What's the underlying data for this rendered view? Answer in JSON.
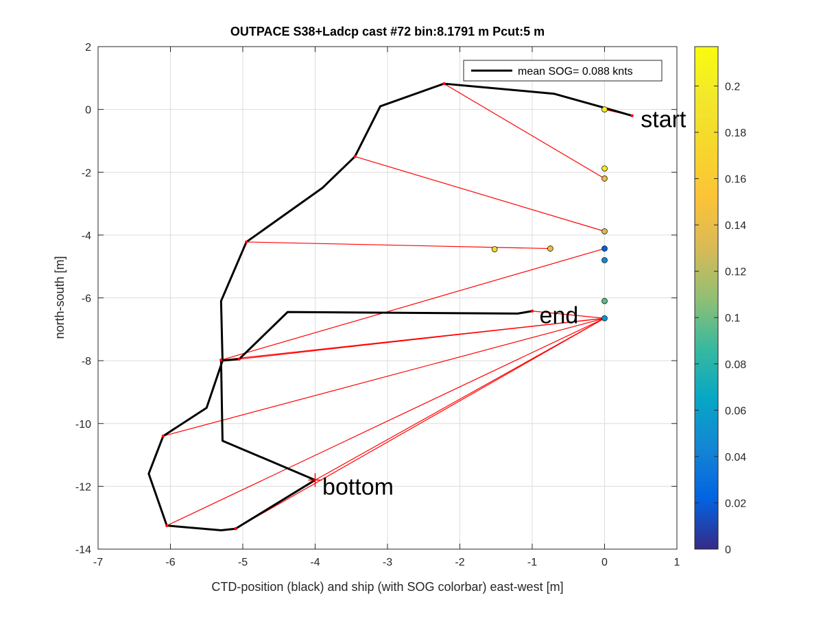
{
  "chart_data": {
    "type": "line",
    "title": "OUTPACE S38+Ladcp cast #72 bin:8.1791 m  Pcut:5 m",
    "xlabel": "CTD-position (black) and ship (with SOG colorbar) east-west [m]",
    "ylabel": "north-south [m]",
    "xlim": [
      -7,
      1
    ],
    "ylim": [
      -14,
      2
    ],
    "xticks": [
      -7,
      -6,
      -5,
      -4,
      -3,
      -2,
      -1,
      0,
      1
    ],
    "yticks": [
      -14,
      -12,
      -10,
      -8,
      -6,
      -4,
      -2,
      0,
      2
    ],
    "grid": true,
    "legend": {
      "location": "top-right",
      "entries": [
        "mean SOG=  0.088 knts"
      ]
    },
    "colorbar": {
      "colormap": "parula",
      "range": [
        0,
        0.217
      ],
      "ticks": [
        0,
        0.02,
        0.04,
        0.06,
        0.08,
        0.1,
        0.12,
        0.14,
        0.16,
        0.18,
        0.2
      ]
    },
    "ctd_track": {
      "x": [
        0.38,
        0.0,
        -0.7,
        -2.22,
        -3.1,
        -3.45,
        -3.9,
        -4.95,
        -5.3,
        -5.28,
        -5.5,
        -6.1,
        -6.3,
        -6.05,
        -5.3,
        -5.1,
        -4.0,
        -5.28,
        -5.3,
        -5.05,
        -4.38,
        -1.2,
        -1.0
      ],
      "y": [
        -0.2,
        0.05,
        0.5,
        0.82,
        0.1,
        -1.5,
        -2.5,
        -4.22,
        -6.1,
        -8.0,
        -9.5,
        -10.4,
        -11.6,
        -13.25,
        -13.4,
        -13.35,
        -11.8,
        -10.55,
        -8.0,
        -7.95,
        -6.45,
        -6.5,
        -6.42
      ]
    },
    "ctd_markers": {
      "x": [
        0.38,
        -2.22,
        -3.45,
        -4.95,
        -5.3,
        -5.05,
        -6.1,
        -6.05,
        -5.1,
        -1.0
      ],
      "y": [
        -0.2,
        0.82,
        -1.5,
        -4.22,
        -7.98,
        -7.95,
        -10.4,
        -13.25,
        -13.35,
        -6.42
      ]
    },
    "ship_points": {
      "x": [
        0.0,
        0.0,
        0.0,
        0.0,
        -0.75,
        -1.52,
        0.0,
        0.0,
        0.0,
        0.0
      ],
      "y": [
        0.0,
        -1.88,
        -2.2,
        -3.88,
        -4.43,
        -4.45,
        -4.43,
        -4.8,
        -6.1,
        -6.65
      ],
      "sog": [
        0.205,
        0.195,
        0.14,
        0.13,
        0.14,
        0.175,
        0.02,
        0.045,
        0.095,
        0.055
      ]
    },
    "connections": [
      [
        [
          0.38,
          -0.2
        ],
        [
          0.0,
          0.0
        ]
      ],
      [
        [
          -2.22,
          0.82
        ],
        [
          0.0,
          -2.2
        ]
      ],
      [
        [
          -3.45,
          -1.5
        ],
        [
          0.0,
          -3.88
        ]
      ],
      [
        [
          -4.95,
          -4.22
        ],
        [
          -0.75,
          -4.43
        ]
      ],
      [
        [
          -5.3,
          -7.98
        ],
        [
          0.0,
          -4.43
        ]
      ],
      [
        [
          -5.05,
          -7.95
        ],
        [
          0.0,
          -6.65
        ]
      ],
      [
        [
          -5.3,
          -7.98
        ],
        [
          0.0,
          -6.65
        ]
      ],
      [
        [
          -6.1,
          -10.4
        ],
        [
          0.0,
          -6.65
        ]
      ],
      [
        [
          -6.05,
          -13.25
        ],
        [
          0.0,
          -6.65
        ]
      ],
      [
        [
          -5.1,
          -13.35
        ],
        [
          0.0,
          -6.65
        ]
      ],
      [
        [
          -4.0,
          -11.8
        ],
        [
          0.0,
          -6.65
        ]
      ],
      [
        [
          -1.0,
          -6.42
        ],
        [
          0.0,
          -6.65
        ]
      ]
    ],
    "annotations": [
      {
        "text": "start",
        "x": 0.5,
        "y": -0.3
      },
      {
        "text": "end",
        "x": -0.9,
        "y": -6.55
      },
      {
        "text": "bottom",
        "x": -3.9,
        "y": -12.0
      }
    ],
    "bottom_marker": {
      "x": -4.0,
      "y": -11.8
    }
  }
}
